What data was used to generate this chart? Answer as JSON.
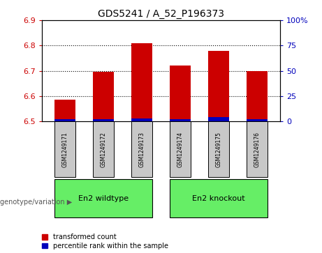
{
  "title": "GDS5241 / A_52_P196373",
  "samples": [
    "GSM1249171",
    "GSM1249172",
    "GSM1249173",
    "GSM1249174",
    "GSM1249175",
    "GSM1249176"
  ],
  "red_values": [
    6.585,
    6.695,
    6.808,
    6.72,
    6.778,
    6.7
  ],
  "blue_values": [
    6.508,
    6.508,
    6.51,
    6.508,
    6.515,
    6.508
  ],
  "blue_heights": [
    0.01,
    0.01,
    0.012,
    0.01,
    0.016,
    0.01
  ],
  "ylim": [
    6.5,
    6.9
  ],
  "yticks_left": [
    6.5,
    6.6,
    6.7,
    6.8,
    6.9
  ],
  "yticks_right_vals": [
    0,
    25,
    50,
    75,
    100
  ],
  "yticks_right_pos": [
    6.5,
    6.6,
    6.7,
    6.8,
    6.9
  ],
  "groups": [
    {
      "label": "En2 wildtype",
      "start": 0,
      "end": 2
    },
    {
      "label": "En2 knockout",
      "start": 3,
      "end": 5
    }
  ],
  "group_label": "genotype/variation",
  "legend_red": "transformed count",
  "legend_blue": "percentile rank within the sample",
  "bar_width": 0.55,
  "bar_color_red": "#CC0000",
  "bar_color_blue": "#0000BB",
  "left_tick_color": "#CC0000",
  "right_tick_color": "#0000BB",
  "bg_color": "#FFFFFF",
  "sample_box_color": "#C8C8C8",
  "group_box_color": "#66EE66"
}
